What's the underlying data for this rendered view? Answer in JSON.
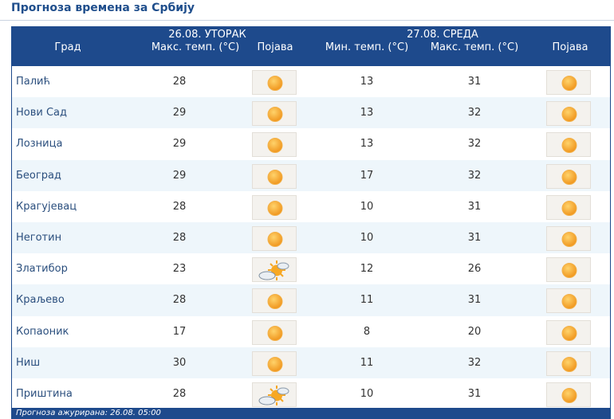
{
  "page": {
    "title": "Прогноза времена за Србију",
    "footer": "Прогноза ажурирана:  26.08. 05:00"
  },
  "table": {
    "day1_date": "26.08. УТОРАК",
    "day2_date": "27.08. СРЕДА",
    "col_city": "Град",
    "col_max1": "Макс. темп. (°C)",
    "col_cond1": "Појава",
    "col_min2": "Мин. темп. (°C)",
    "col_max2": "Макс. темп. (°C)",
    "col_cond2": "Појава",
    "rows": [
      {
        "city": "Палић",
        "max1": "28",
        "cond1": "sunny-icon",
        "min2": "13",
        "max2": "31",
        "cond2": "sunny-icon"
      },
      {
        "city": "Нови Сад",
        "max1": "29",
        "cond1": "sunny-icon",
        "min2": "13",
        "max2": "32",
        "cond2": "sunny-icon"
      },
      {
        "city": "Лозница",
        "max1": "29",
        "cond1": "sunny-icon",
        "min2": "13",
        "max2": "32",
        "cond2": "sunny-icon"
      },
      {
        "city": "Београд",
        "max1": "29",
        "cond1": "sunny-icon",
        "min2": "17",
        "max2": "32",
        "cond2": "sunny-icon"
      },
      {
        "city": "Крагујевац",
        "max1": "28",
        "cond1": "sunny-icon",
        "min2": "10",
        "max2": "31",
        "cond2": "sunny-icon"
      },
      {
        "city": "Неготин",
        "max1": "28",
        "cond1": "sunny-icon",
        "min2": "10",
        "max2": "31",
        "cond2": "sunny-icon"
      },
      {
        "city": "Златибор",
        "max1": "23",
        "cond1": "partly-cloudy-icon",
        "min2": "12",
        "max2": "26",
        "cond2": "sunny-icon"
      },
      {
        "city": "Краљево",
        "max1": "28",
        "cond1": "sunny-icon",
        "min2": "11",
        "max2": "31",
        "cond2": "sunny-icon"
      },
      {
        "city": "Копаоник",
        "max1": "17",
        "cond1": "sunny-icon",
        "min2": "8",
        "max2": "20",
        "cond2": "sunny-icon"
      },
      {
        "city": "Ниш",
        "max1": "30",
        "cond1": "sunny-icon",
        "min2": "11",
        "max2": "32",
        "cond2": "sunny-icon"
      },
      {
        "city": "Приштина",
        "max1": "28",
        "cond1": "partly-cloudy-icon",
        "min2": "10",
        "max2": "31",
        "cond2": "sunny-icon"
      }
    ]
  },
  "colors": {
    "header_bg": "#1e4a8c",
    "row_alt_bg": "#eef6fb",
    "title_color": "#1f4e8c",
    "sun": "#f5a623"
  }
}
